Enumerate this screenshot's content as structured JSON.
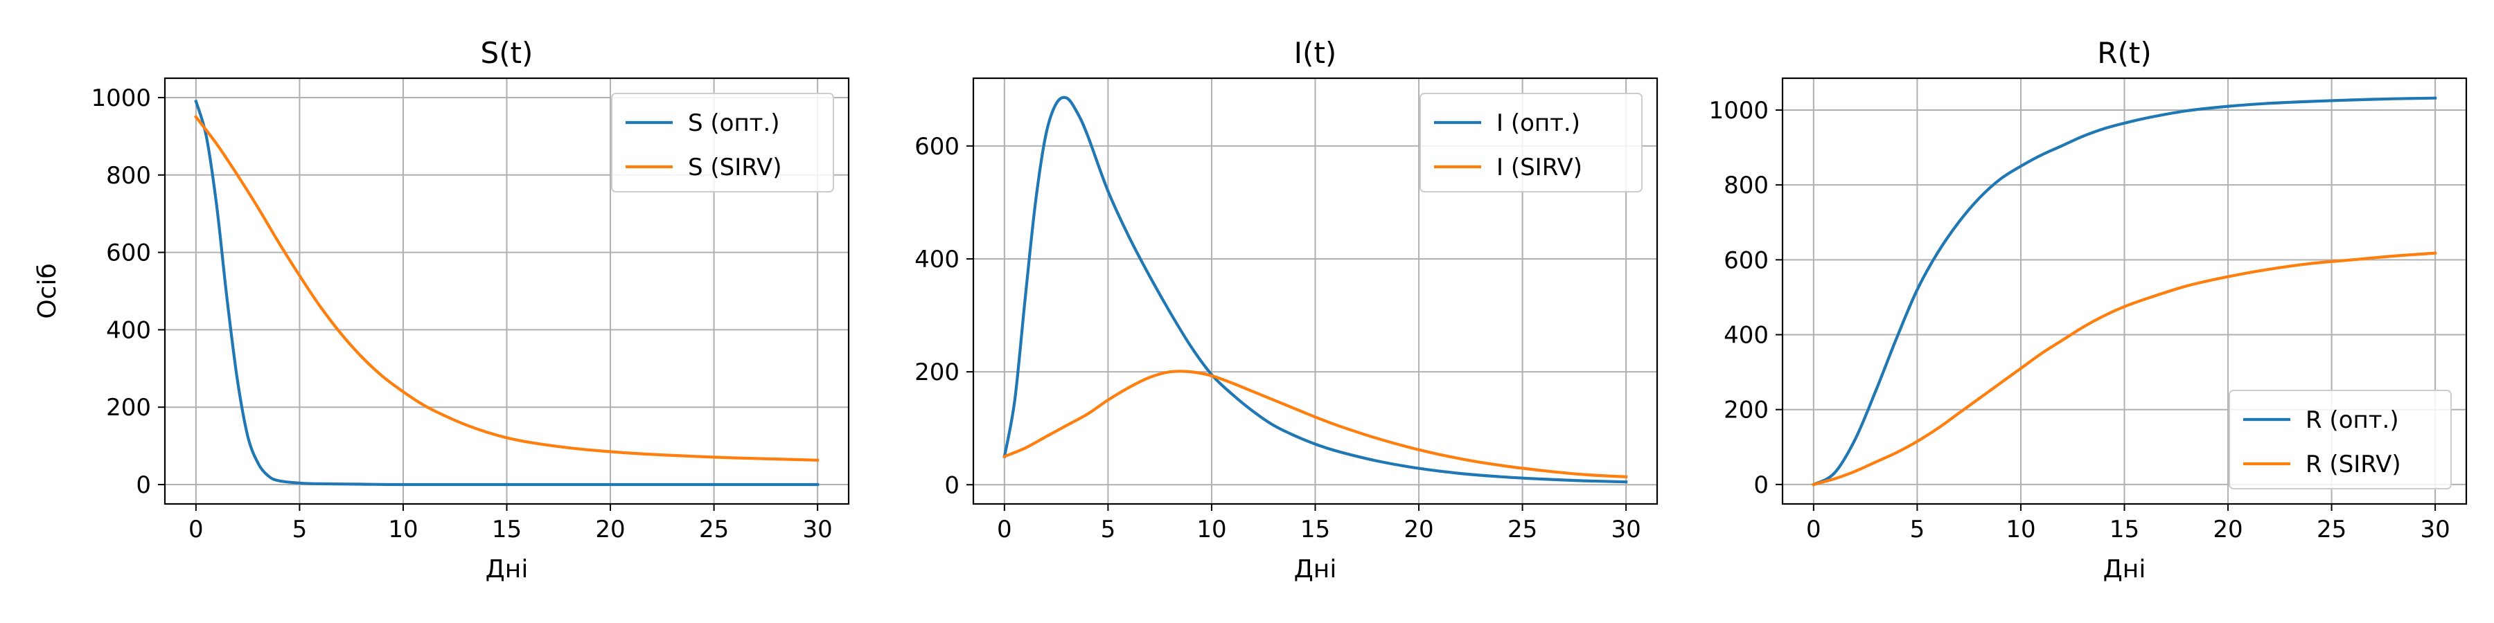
{
  "figure": {
    "background": "#ffffff",
    "color_opt": "#1f77b4",
    "color_sirv": "#ff7f0e",
    "grid_color": "#b0b0b0"
  },
  "chart_data": [
    {
      "type": "line",
      "title": "S(t)",
      "xlabel": "Дні",
      "ylabel": "Осіб",
      "xlim": [
        -1.5,
        31.5
      ],
      "ylim": [
        -50,
        1050
      ],
      "xticks": [
        0,
        5,
        10,
        15,
        20,
        25,
        30
      ],
      "yticks": [
        0,
        200,
        400,
        600,
        800,
        1000
      ],
      "grid": true,
      "legend": "top-right",
      "series": [
        {
          "name": "S (опт.)",
          "color": "#1f77b4",
          "x": [
            0,
            0.5,
            1,
            1.5,
            2,
            2.5,
            3,
            3.5,
            4,
            5,
            6,
            8,
            10,
            15,
            20,
            25,
            30
          ],
          "y": [
            990,
            900,
            720,
            480,
            270,
            125,
            55,
            22,
            10,
            4,
            2,
            1,
            0,
            0,
            0,
            0,
            0
          ]
        },
        {
          "name": "S (SIRV)",
          "color": "#ff7f0e",
          "x": [
            0,
            1,
            2,
            3,
            4,
            5,
            6,
            7,
            8,
            9,
            10,
            11,
            12,
            13,
            14,
            15,
            16,
            18,
            20,
            22,
            24,
            26,
            28,
            30
          ],
          "y": [
            950,
            880,
            800,
            715,
            625,
            540,
            460,
            390,
            330,
            280,
            240,
            205,
            178,
            155,
            136,
            121,
            110,
            95,
            85,
            78,
            73,
            69,
            66,
            63
          ]
        }
      ]
    },
    {
      "type": "line",
      "title": "I(t)",
      "xlabel": "Дні",
      "ylabel": "",
      "xlim": [
        -1.5,
        31.5
      ],
      "ylim": [
        -34,
        720
      ],
      "xticks": [
        0,
        5,
        10,
        15,
        20,
        25,
        30
      ],
      "yticks": [
        0,
        200,
        400,
        600
      ],
      "grid": true,
      "legend": "top-right",
      "series": [
        {
          "name": "I (опт.)",
          "color": "#1f77b4",
          "x": [
            0,
            0.5,
            1,
            1.5,
            2,
            2.5,
            3,
            3.5,
            4,
            5,
            6,
            7,
            8,
            9,
            10,
            11,
            12,
            13,
            14,
            15,
            16,
            18,
            20,
            22,
            24,
            26,
            28,
            30
          ],
          "y": [
            50,
            150,
            330,
            500,
            620,
            675,
            685,
            660,
            620,
            520,
            440,
            370,
            305,
            245,
            195,
            160,
            130,
            105,
            87,
            72,
            60,
            42,
            29,
            20,
            14,
            10,
            7,
            5
          ]
        },
        {
          "name": "I (SIRV)",
          "color": "#ff7f0e",
          "x": [
            0,
            1,
            2,
            3,
            4,
            5,
            6,
            7,
            8,
            9,
            10,
            11,
            12,
            13,
            14,
            15,
            16,
            18,
            20,
            22,
            24,
            26,
            28,
            30
          ],
          "y": [
            50,
            65,
            85,
            105,
            125,
            150,
            172,
            190,
            200,
            200,
            193,
            180,
            165,
            150,
            135,
            120,
            106,
            82,
            62,
            46,
            34,
            25,
            18,
            14
          ]
        }
      ]
    },
    {
      "type": "line",
      "title": "R(t)",
      "xlabel": "Дні",
      "ylabel": "",
      "xlim": [
        -1.5,
        31.5
      ],
      "ylim": [
        -52,
        1085
      ],
      "xticks": [
        0,
        5,
        10,
        15,
        20,
        25,
        30
      ],
      "yticks": [
        0,
        200,
        400,
        600,
        800,
        1000
      ],
      "grid": true,
      "legend": "bottom-right",
      "series": [
        {
          "name": "R (опт.)",
          "color": "#1f77b4",
          "x": [
            0,
            1,
            2,
            3,
            4,
            5,
            6,
            7,
            8,
            9,
            10,
            11,
            12,
            13,
            14,
            15,
            16,
            18,
            20,
            22,
            24,
            26,
            28,
            30
          ],
          "y": [
            0,
            30,
            120,
            250,
            390,
            520,
            620,
            700,
            765,
            815,
            850,
            880,
            905,
            930,
            950,
            965,
            978,
            998,
            1010,
            1018,
            1023,
            1027,
            1030,
            1032
          ]
        },
        {
          "name": "R (SIRV)",
          "color": "#ff7f0e",
          "x": [
            0,
            1,
            2,
            3,
            4,
            5,
            6,
            7,
            8,
            9,
            10,
            11,
            12,
            13,
            14,
            15,
            16,
            18,
            20,
            22,
            24,
            26,
            28,
            30
          ],
          "y": [
            0,
            15,
            35,
            60,
            85,
            115,
            150,
            190,
            230,
            270,
            310,
            350,
            385,
            420,
            450,
            475,
            495,
            530,
            555,
            575,
            590,
            600,
            610,
            618
          ]
        }
      ]
    }
  ]
}
